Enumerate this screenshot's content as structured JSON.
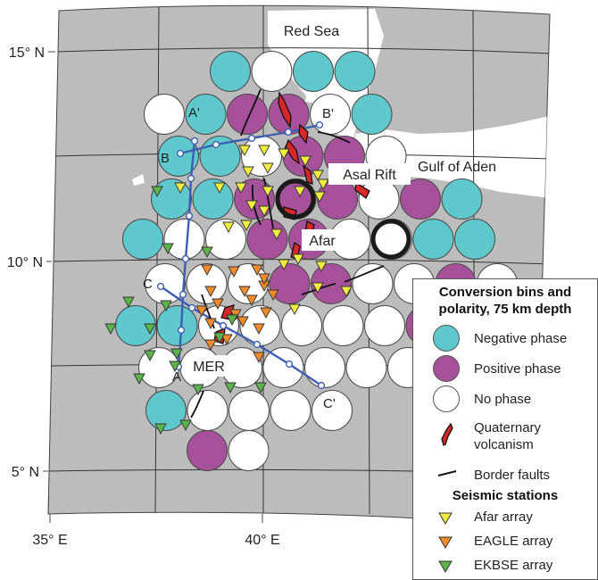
{
  "map": {
    "latitude_labels": [
      "15° N",
      "10° N",
      "5° N"
    ],
    "longitude_labels": [
      "35° E",
      "40° E"
    ],
    "place_labels": {
      "red_sea": "Red Sea",
      "gulf_of_aden": "Gulf of Aden",
      "asal_rift": "Asal Rift",
      "afar": "Afar",
      "mer": "MER"
    },
    "profile_labels": [
      "A",
      "A'",
      "B",
      "B'",
      "C",
      "C'"
    ],
    "colors": {
      "negative": "#5ec8cd",
      "positive": "#a8519b",
      "none": "#ffffff",
      "land": "#bcbcbc",
      "water": "#ffffff",
      "profile_line": "#3c5fb3",
      "volcanism": "#d62828",
      "afar_array": "#f1ed3d",
      "eagle_array": "#f08a2b",
      "ekbse_array": "#5cb34a"
    }
  },
  "legend": {
    "title": "Conversion bins and polarity, 75 km depth",
    "negative": "Negative phase",
    "positive": "Positive phase",
    "none": "No phase",
    "volcanism_line1": "Quaternary",
    "volcanism_line2": "volcanism",
    "faults": "Border faults",
    "stations_title": "Seismic stations",
    "afar": "Afar array",
    "eagle": "EAGLE array",
    "ekbse": "EKBSE array"
  }
}
